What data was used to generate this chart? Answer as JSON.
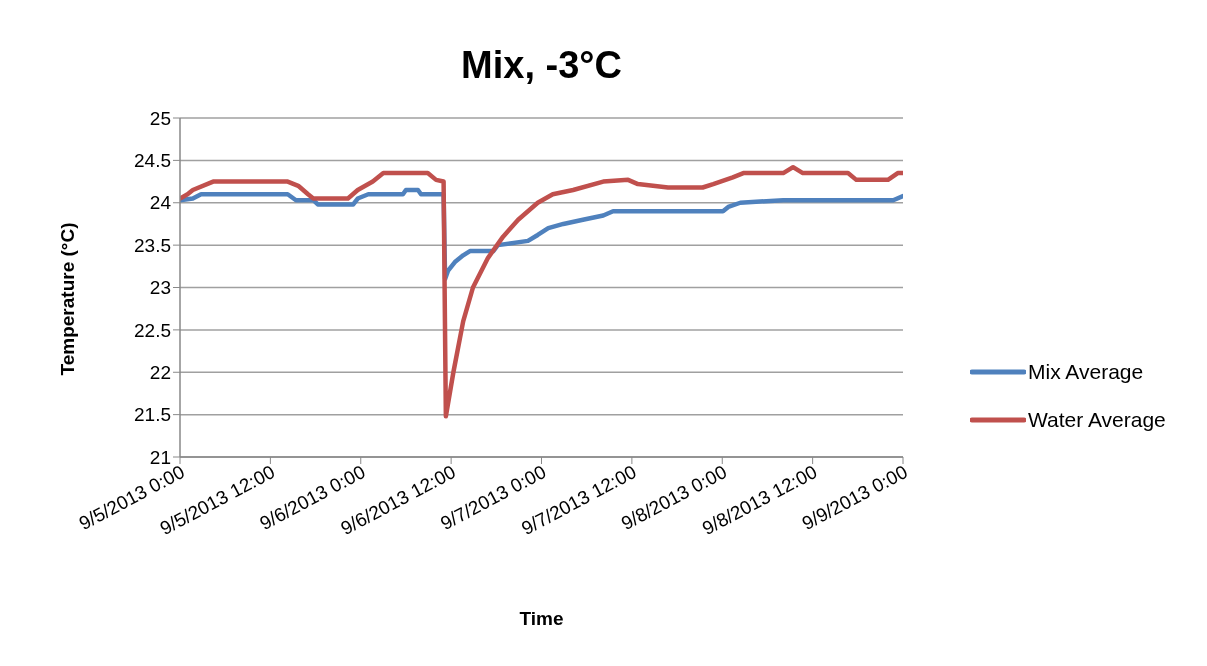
{
  "chart_data": {
    "type": "line",
    "title": "Mix, -3°C",
    "xlabel": "Time",
    "ylabel": "Temperature (°C)",
    "xlim": [
      "2013-09-05T00:00",
      "2013-09-09T00:00"
    ],
    "xticks": [
      {
        "value": "2013-09-05T00:00",
        "label": "9/5/2013 0:00"
      },
      {
        "value": "2013-09-05T12:00",
        "label": "9/5/2013 12:00"
      },
      {
        "value": "2013-09-06T00:00",
        "label": "9/6/2013 0:00"
      },
      {
        "value": "2013-09-06T12:00",
        "label": "9/6/2013 12:00"
      },
      {
        "value": "2013-09-07T00:00",
        "label": "9/7/2013 0:00"
      },
      {
        "value": "2013-09-07T12:00",
        "label": "9/7/2013 12:00"
      },
      {
        "value": "2013-09-08T00:00",
        "label": "9/8/2013 0:00"
      },
      {
        "value": "2013-09-08T12:00",
        "label": "9/8/2013 12:00"
      },
      {
        "value": "2013-09-09T00:00",
        "label": "9/9/2013 0:00"
      }
    ],
    "ylim": [
      21,
      25
    ],
    "yticks": [
      21,
      21.5,
      22,
      22.5,
      23,
      23.5,
      24,
      24.5,
      25
    ],
    "grid": "y",
    "legend": "right",
    "marker": "none",
    "line_style": "solid",
    "series": [
      {
        "name": "Mix Average",
        "color": "#4f81bd",
        "x": [
          "2013-09-05T00:00",
          "2013-09-05T01:42",
          "2013-09-05T02:48",
          "2013-09-05T14:18",
          "2013-09-05T15:24",
          "2013-09-05T17:42",
          "2013-09-05T18:18",
          "2013-09-05T23:00",
          "2013-09-05T23:36",
          "2013-09-06T01:00",
          "2013-09-06T05:36",
          "2013-09-06T06:00",
          "2013-09-06T07:36",
          "2013-09-06T08:00",
          "2013-09-06T11:00",
          "2013-09-06T11:12",
          "2013-09-06T11:36",
          "2013-09-06T12:30",
          "2013-09-06T13:36",
          "2013-09-06T14:30",
          "2013-09-06T17:36",
          "2013-09-06T18:12",
          "2013-09-06T22:12",
          "2013-09-06T23:30",
          "2013-09-07T00:54",
          "2013-09-07T02:54",
          "2013-09-07T05:30",
          "2013-09-07T08:12",
          "2013-09-07T09:30",
          "2013-09-08T00:06",
          "2013-09-08T00:48",
          "2013-09-08T02:24",
          "2013-09-08T08:06",
          "2013-09-08T22:42",
          "2013-09-09T00:00"
        ],
        "values": [
          24.03,
          24.05,
          24.1,
          24.1,
          24.03,
          24.03,
          23.98,
          23.98,
          24.05,
          24.1,
          24.1,
          24.15,
          24.15,
          24.1,
          24.1,
          23.1,
          23.2,
          23.3,
          23.38,
          23.43,
          23.43,
          23.5,
          23.55,
          23.62,
          23.7,
          23.75,
          23.8,
          23.85,
          23.9,
          23.9,
          23.95,
          24.0,
          24.03,
          24.03,
          24.08
        ]
      },
      {
        "name": "Water Average",
        "color": "#c0504d",
        "x": [
          "2013-09-05T00:00",
          "2013-09-05T01:00",
          "2013-09-05T01:42",
          "2013-09-05T04:24",
          "2013-09-05T14:18",
          "2013-09-05T15:42",
          "2013-09-05T17:00",
          "2013-09-05T17:42",
          "2013-09-05T22:18",
          "2013-09-05T23:36",
          "2013-09-06T01:36",
          "2013-09-06T03:00",
          "2013-09-06T08:54",
          "2013-09-06T10:00",
          "2013-09-06T11:00",
          "2013-09-06T11:18",
          "2013-09-06T12:18",
          "2013-09-06T13:36",
          "2013-09-06T14:54",
          "2013-09-06T16:54",
          "2013-09-06T18:54",
          "2013-09-06T20:54",
          "2013-09-06T23:30",
          "2013-09-07T01:30",
          "2013-09-07T04:12",
          "2013-09-07T08:12",
          "2013-09-07T11:30",
          "2013-09-07T12:48",
          "2013-09-07T16:48",
          "2013-09-07T21:24",
          "2013-09-07T22:48",
          "2013-09-08T01:24",
          "2013-09-08T02:48",
          "2013-09-08T08:06",
          "2013-09-08T09:24",
          "2013-09-08T10:42",
          "2013-09-08T16:42",
          "2013-09-08T17:48",
          "2013-09-08T22:00",
          "2013-09-08T23:18",
          "2013-09-09T00:00"
        ],
        "values": [
          24.05,
          24.1,
          24.15,
          24.25,
          24.25,
          24.2,
          24.1,
          24.05,
          24.05,
          24.15,
          24.25,
          24.35,
          24.35,
          24.27,
          24.25,
          21.48,
          22.0,
          22.6,
          23.0,
          23.35,
          23.6,
          23.8,
          24.0,
          24.1,
          24.15,
          24.25,
          24.27,
          24.22,
          24.18,
          24.18,
          24.22,
          24.3,
          24.35,
          24.35,
          24.42,
          24.35,
          24.35,
          24.27,
          24.27,
          24.35,
          24.35
        ]
      }
    ]
  }
}
